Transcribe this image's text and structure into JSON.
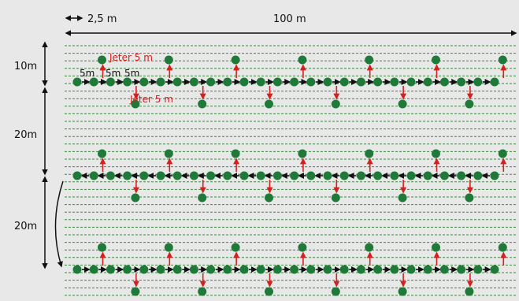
{
  "labels": {
    "spacing_top": "2,5 m",
    "width_top": "100 m",
    "row_10m": "10m",
    "row_20m_a": "20m",
    "row_20m_b": "20m",
    "step_a": "5m",
    "step_b": "5m",
    "step_c": "5m",
    "jeter_up": "Jeter 5 m",
    "jeter_down": "Jeter 5 m"
  },
  "colors": {
    "background": "#e8e8e8",
    "grass_lines": "#3c8c3c",
    "dots": "#1f7a3a",
    "path_arrows": "#111111",
    "jeter_arrows": "#d32020",
    "jeter_text": "#d32020"
  },
  "transects": [
    {
      "direction": "right"
    },
    {
      "direction": "left"
    },
    {
      "direction": "right"
    }
  ]
}
